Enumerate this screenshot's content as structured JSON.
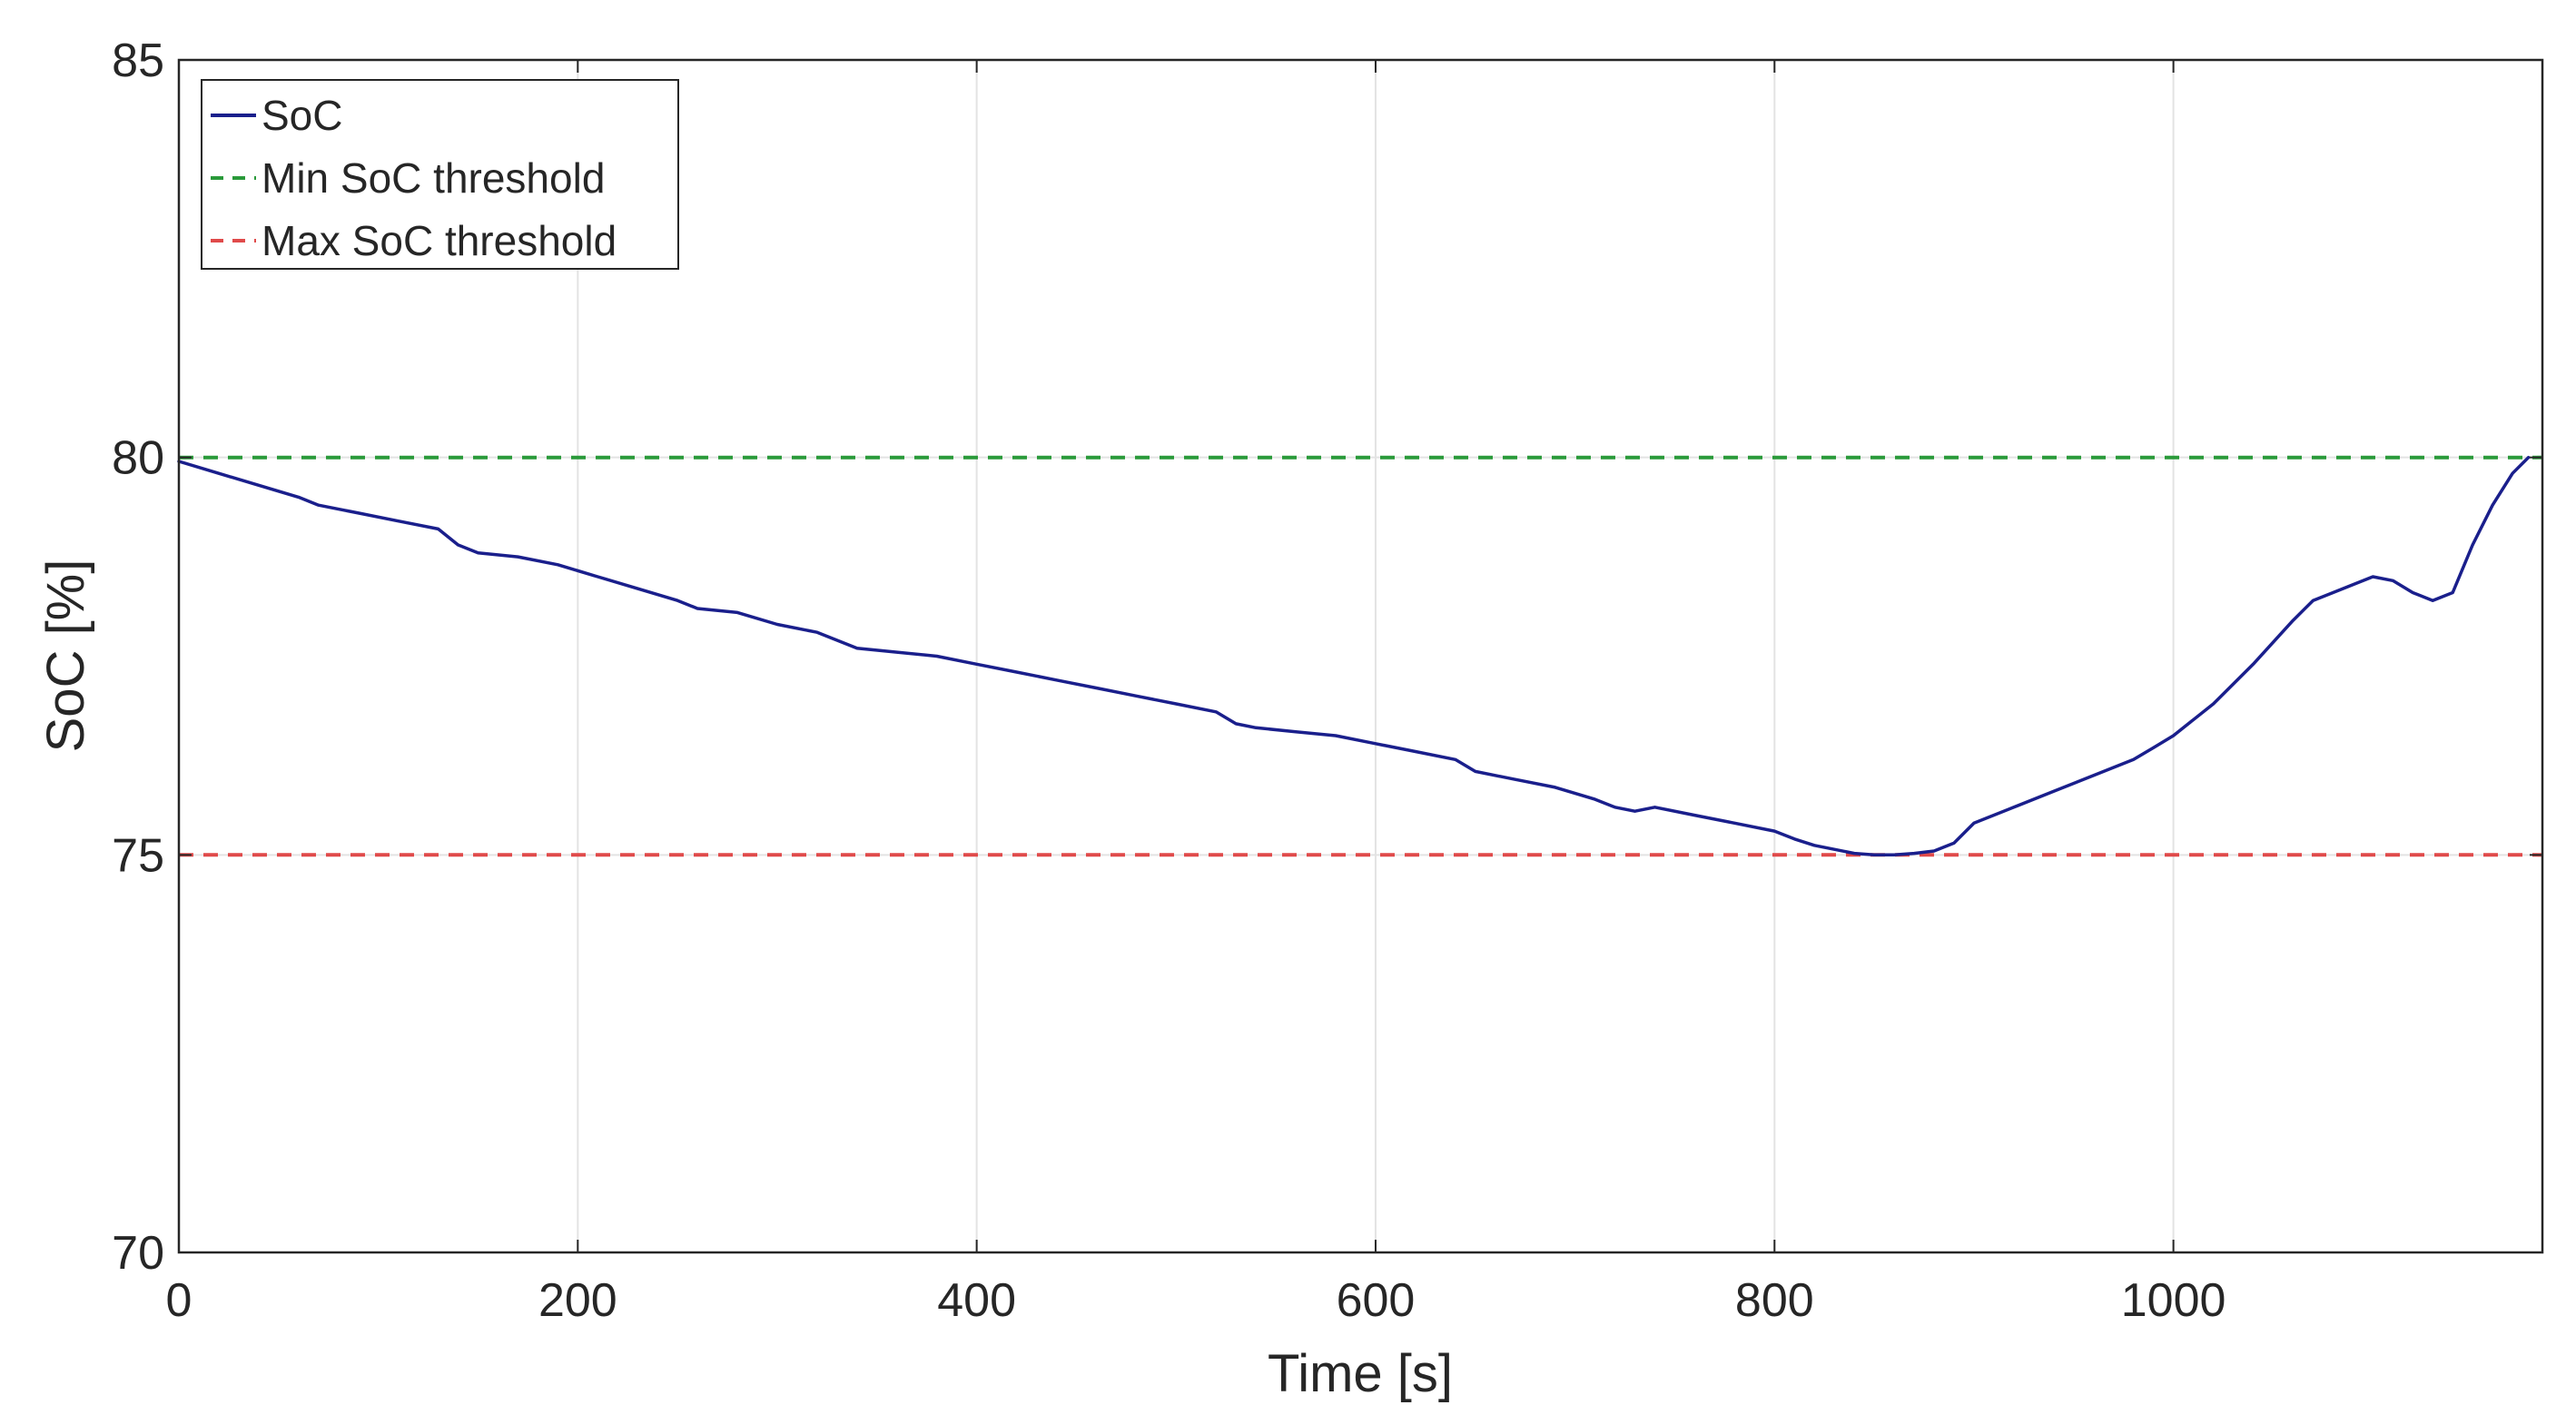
{
  "chart_data": {
    "type": "line",
    "title": "",
    "xlabel": "Time [s]",
    "ylabel": "SoC [%]",
    "xlim": [
      0,
      1185
    ],
    "ylim": [
      70,
      85
    ],
    "xticks": [
      0,
      200,
      400,
      600,
      800,
      1000
    ],
    "yticks": [
      70,
      75,
      80,
      85
    ],
    "grid": true,
    "legend_position": "top-left",
    "series": [
      {
        "name": "SoC",
        "color": "#1a1f8c",
        "style": "solid",
        "x": [
          0,
          20,
          40,
          60,
          70,
          90,
          110,
          130,
          140,
          150,
          170,
          190,
          210,
          230,
          250,
          260,
          280,
          300,
          320,
          335,
          340,
          360,
          380,
          400,
          420,
          440,
          460,
          480,
          500,
          520,
          530,
          540,
          560,
          580,
          600,
          620,
          640,
          650,
          670,
          690,
          710,
          720,
          730,
          740,
          760,
          780,
          800,
          810,
          820,
          840,
          850,
          860,
          870,
          880,
          890,
          900,
          920,
          940,
          960,
          980,
          990,
          1000,
          1020,
          1040,
          1060,
          1070,
          1080,
          1090,
          1100,
          1110,
          1120,
          1130,
          1140,
          1150,
          1160,
          1170,
          1178
        ],
        "y": [
          79.95,
          79.8,
          79.65,
          79.5,
          79.4,
          79.3,
          79.2,
          79.1,
          78.9,
          78.8,
          78.75,
          78.65,
          78.5,
          78.35,
          78.2,
          78.1,
          78.05,
          77.9,
          77.8,
          77.65,
          77.6,
          77.55,
          77.5,
          77.4,
          77.3,
          77.2,
          77.1,
          77.0,
          76.9,
          76.8,
          76.65,
          76.6,
          76.55,
          76.5,
          76.4,
          76.3,
          76.2,
          76.05,
          75.95,
          75.85,
          75.7,
          75.6,
          75.55,
          75.6,
          75.5,
          75.4,
          75.3,
          75.2,
          75.12,
          75.02,
          75.0,
          75.0,
          75.02,
          75.05,
          75.15,
          75.4,
          75.6,
          75.8,
          76.0,
          76.2,
          76.35,
          76.5,
          76.9,
          77.4,
          77.95,
          78.2,
          78.3,
          78.4,
          78.5,
          78.45,
          78.3,
          78.2,
          78.3,
          78.9,
          79.4,
          79.8,
          80.0
        ]
      },
      {
        "name": "Min SoC threshold",
        "color": "#2a9a3a",
        "style": "dashed",
        "x": [
          0,
          1185
        ],
        "y": [
          80,
          80
        ]
      },
      {
        "name": "Max SoC threshold",
        "color": "#e04a4a",
        "style": "dashed",
        "x": [
          0,
          1185
        ],
        "y": [
          75,
          75
        ]
      }
    ]
  }
}
